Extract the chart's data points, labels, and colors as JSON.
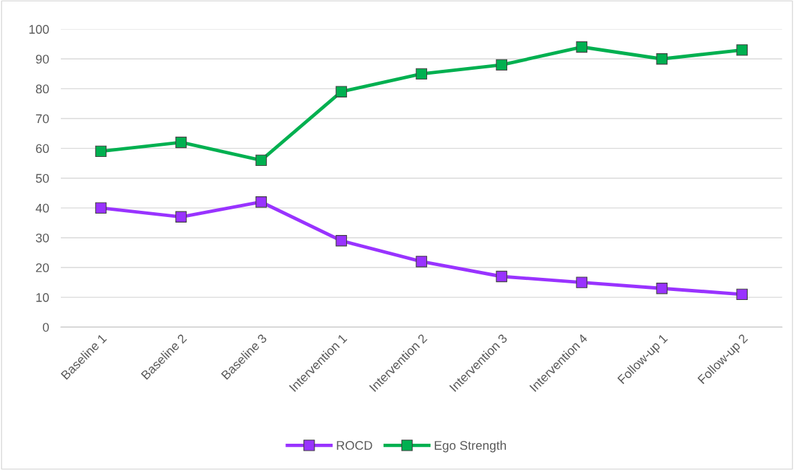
{
  "chart_data": {
    "type": "line",
    "categories": [
      "Baseline 1",
      "Baseline 2",
      "Baseline 3",
      "Intervention 1",
      "Intervention 2",
      "Intervention 3",
      "Intervention 4",
      "Follow-up 1",
      "Follow-up 2"
    ],
    "series": [
      {
        "name": "ROCD",
        "color": "#9933ff",
        "values": [
          40,
          37,
          42,
          29,
          22,
          17,
          15,
          13,
          11
        ]
      },
      {
        "name": "Ego Strength",
        "color": "#00b050",
        "values": [
          59,
          62,
          56,
          79,
          85,
          88,
          94,
          90,
          93
        ]
      }
    ],
    "ylim": [
      0,
      100
    ],
    "yticks": [
      0,
      10,
      20,
      30,
      40,
      50,
      60,
      70,
      80,
      90,
      100
    ],
    "grid": "y",
    "legend": "bottom",
    "marker": "square",
    "line_style": "solid"
  }
}
